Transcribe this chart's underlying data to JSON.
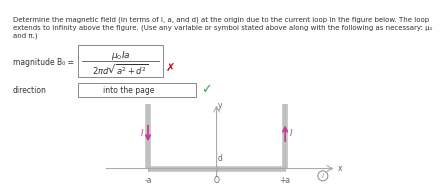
{
  "title_text_line1": "Determine the magnetic field (in terms of I, a, and d) at the origin due to the current loop in the figure below. The loop",
  "title_text_line2": "extends to infinity above the figure. (Use any variable or symbol stated above along with the following as necessary: μ₀",
  "title_text_line3": "and π.)",
  "magnitude_label": "magnitude B₀ =",
  "direction_label": "direction",
  "direction_value": "into the page",
  "wrong_mark_color": "#cc0000",
  "check_mark_color": "#33aa33",
  "arrow_color": "#cc3399",
  "axis_color": "#aaaaaa",
  "wire_color": "#c0c0c0",
  "text_color": "#333333",
  "bg_color": "#ffffff"
}
